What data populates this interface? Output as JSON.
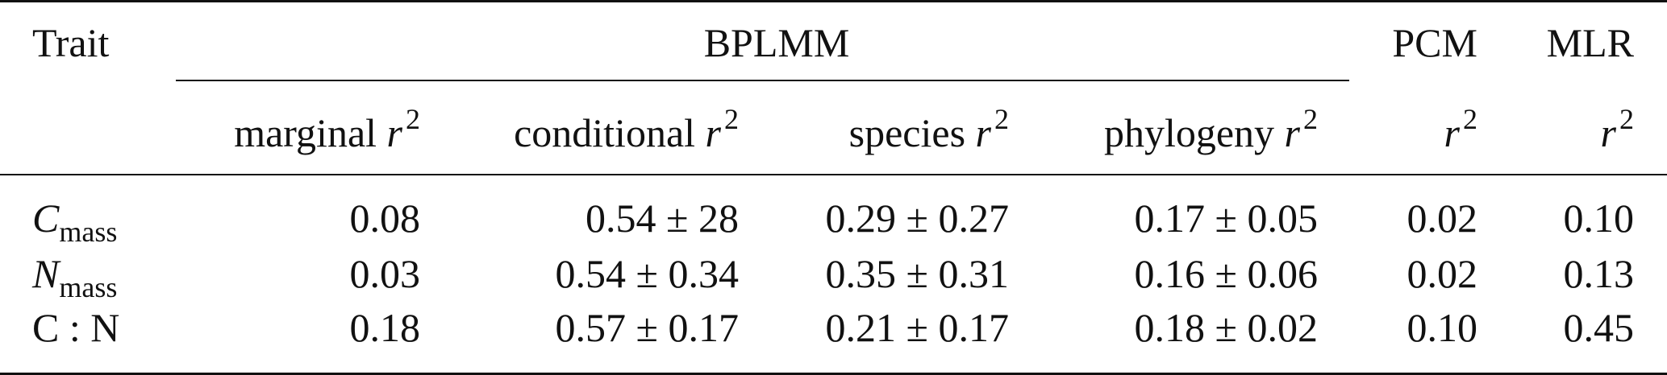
{
  "table": {
    "header": {
      "trait": "Trait",
      "bplmm": "BPLMM",
      "pcm": "PCM",
      "mlr": "MLR",
      "sub": {
        "marginal": "marginal ",
        "conditional": "conditional ",
        "species": "species ",
        "phylogeny": "phylogeny ",
        "r": "r",
        "exp": "2"
      }
    },
    "rows": [
      {
        "trait_sym": "C",
        "trait_sub": "mass",
        "marginal": "0.08",
        "conditional": "0.54 ± 28",
        "species": "0.29 ± 0.27",
        "phylogeny": "0.17 ± 0.05",
        "pcm": "0.02",
        "mlr": "0.10"
      },
      {
        "trait_sym": "N",
        "trait_sub": "mass",
        "marginal": "0.03",
        "conditional": "0.54 ± 0.34",
        "species": "0.35 ± 0.31",
        "phylogeny": "0.16 ± 0.06",
        "pcm": "0.02",
        "mlr": "0.13"
      },
      {
        "trait_label": "C : N",
        "marginal": "0.18",
        "conditional": "0.57 ± 0.17",
        "species": "0.21 ± 0.17",
        "phylogeny": "0.18 ± 0.02",
        "pcm": "0.10",
        "mlr": "0.45"
      }
    ]
  }
}
